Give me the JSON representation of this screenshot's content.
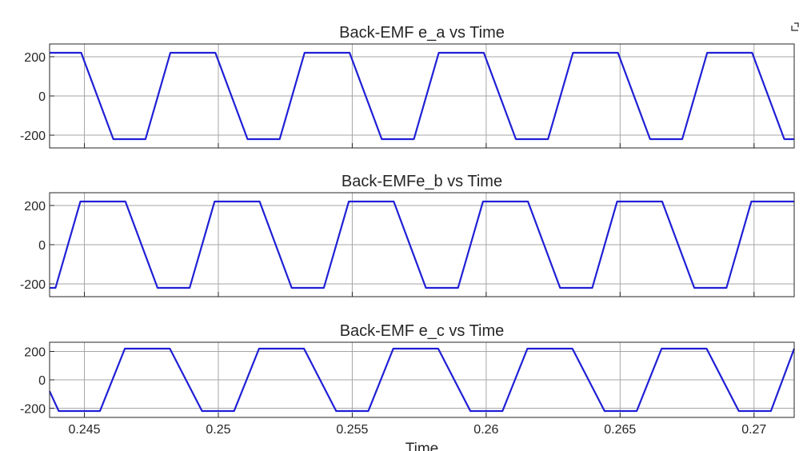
{
  "figure": {
    "corner_icon": "dock-icon",
    "line_color": "#1f1fd6",
    "grid_color": "#a6a6a6"
  },
  "chart_data": [
    {
      "type": "line",
      "title": "Back-EMF e_a vs Time",
      "xlabel": "",
      "ylabel": "",
      "xlim": [
        0.2437,
        0.2715
      ],
      "ylim": [
        -265,
        265
      ],
      "grid": true,
      "xticks": [
        0.245,
        0.25,
        0.255,
        0.26,
        0.265,
        0.27
      ],
      "xtick_labels": [],
      "yticks": [
        -200,
        0,
        200
      ],
      "ytick_labels": [
        "-200",
        "0",
        "200"
      ],
      "series": [
        {
          "values": [
            [
              0.2437,
              220
            ],
            [
              0.24488,
              220
            ],
            [
              0.24608,
              -220
            ],
            [
              0.24728,
              -220
            ],
            [
              0.24821,
              220
            ],
            [
              0.24989,
              220
            ],
            [
              0.25109,
              -220
            ],
            [
              0.25229,
              -220
            ],
            [
              0.25322,
              220
            ],
            [
              0.2549,
              220
            ],
            [
              0.2561,
              -220
            ],
            [
              0.2573,
              -220
            ],
            [
              0.25823,
              220
            ],
            [
              0.25991,
              220
            ],
            [
              0.26111,
              -220
            ],
            [
              0.26231,
              -220
            ],
            [
              0.26324,
              220
            ],
            [
              0.26492,
              220
            ],
            [
              0.26612,
              -220
            ],
            [
              0.26732,
              -220
            ],
            [
              0.26825,
              220
            ],
            [
              0.26993,
              220
            ],
            [
              0.27113,
              -220
            ],
            [
              0.2715,
              -220
            ]
          ]
        }
      ]
    },
    {
      "type": "line",
      "title": "Back-EMFe_b vs Time",
      "xlabel": "",
      "ylabel": "",
      "xlim": [
        0.2437,
        0.2715
      ],
      "ylim": [
        -265,
        265
      ],
      "grid": true,
      "xticks": [
        0.245,
        0.25,
        0.255,
        0.26,
        0.265,
        0.27
      ],
      "xtick_labels": [],
      "yticks": [
        -200,
        0,
        200
      ],
      "ytick_labels": [
        "-200",
        "0",
        "200"
      ],
      "series": [
        {
          "values": [
            [
              0.2437,
              -220
            ],
            [
              0.24392,
              -220
            ],
            [
              0.24485,
              220
            ],
            [
              0.24653,
              220
            ],
            [
              0.24773,
              -220
            ],
            [
              0.24893,
              -220
            ],
            [
              0.24986,
              220
            ],
            [
              0.25154,
              220
            ],
            [
              0.25274,
              -220
            ],
            [
              0.25394,
              -220
            ],
            [
              0.25487,
              220
            ],
            [
              0.25655,
              220
            ],
            [
              0.25775,
              -220
            ],
            [
              0.25895,
              -220
            ],
            [
              0.25988,
              220
            ],
            [
              0.26156,
              220
            ],
            [
              0.26276,
              -220
            ],
            [
              0.26396,
              -220
            ],
            [
              0.26489,
              220
            ],
            [
              0.26657,
              220
            ],
            [
              0.26777,
              -220
            ],
            [
              0.26897,
              -220
            ],
            [
              0.2699,
              220
            ],
            [
              0.2715,
              220
            ]
          ]
        }
      ]
    },
    {
      "type": "line",
      "title": "Back-EMF e_c vs Time",
      "xlabel": "Time",
      "ylabel": "",
      "xlim": [
        0.2437,
        0.2715
      ],
      "ylim": [
        -265,
        265
      ],
      "grid": true,
      "xticks": [
        0.245,
        0.25,
        0.255,
        0.26,
        0.265,
        0.27
      ],
      "xtick_labels": [
        "0.245",
        "0.25",
        "0.255",
        "0.26",
        "0.265",
        "0.27"
      ],
      "yticks": [
        -200,
        0,
        200
      ],
      "ytick_labels": [
        "-200",
        "0",
        "200"
      ],
      "series": [
        {
          "values": [
            [
              0.2437,
              -80
            ],
            [
              0.24404,
              -220
            ],
            [
              0.24558,
              -220
            ],
            [
              0.24651,
              220
            ],
            [
              0.24819,
              220
            ],
            [
              0.24939,
              -220
            ],
            [
              0.25059,
              -220
            ],
            [
              0.25152,
              220
            ],
            [
              0.2532,
              220
            ],
            [
              0.2544,
              -220
            ],
            [
              0.2556,
              -220
            ],
            [
              0.25653,
              220
            ],
            [
              0.25821,
              220
            ],
            [
              0.25941,
              -220
            ],
            [
              0.26061,
              -220
            ],
            [
              0.26154,
              220
            ],
            [
              0.26322,
              220
            ],
            [
              0.26442,
              -220
            ],
            [
              0.26562,
              -220
            ],
            [
              0.26655,
              220
            ],
            [
              0.26823,
              220
            ],
            [
              0.26943,
              -220
            ],
            [
              0.27063,
              -220
            ],
            [
              0.2715,
              220
            ]
          ]
        }
      ]
    }
  ]
}
